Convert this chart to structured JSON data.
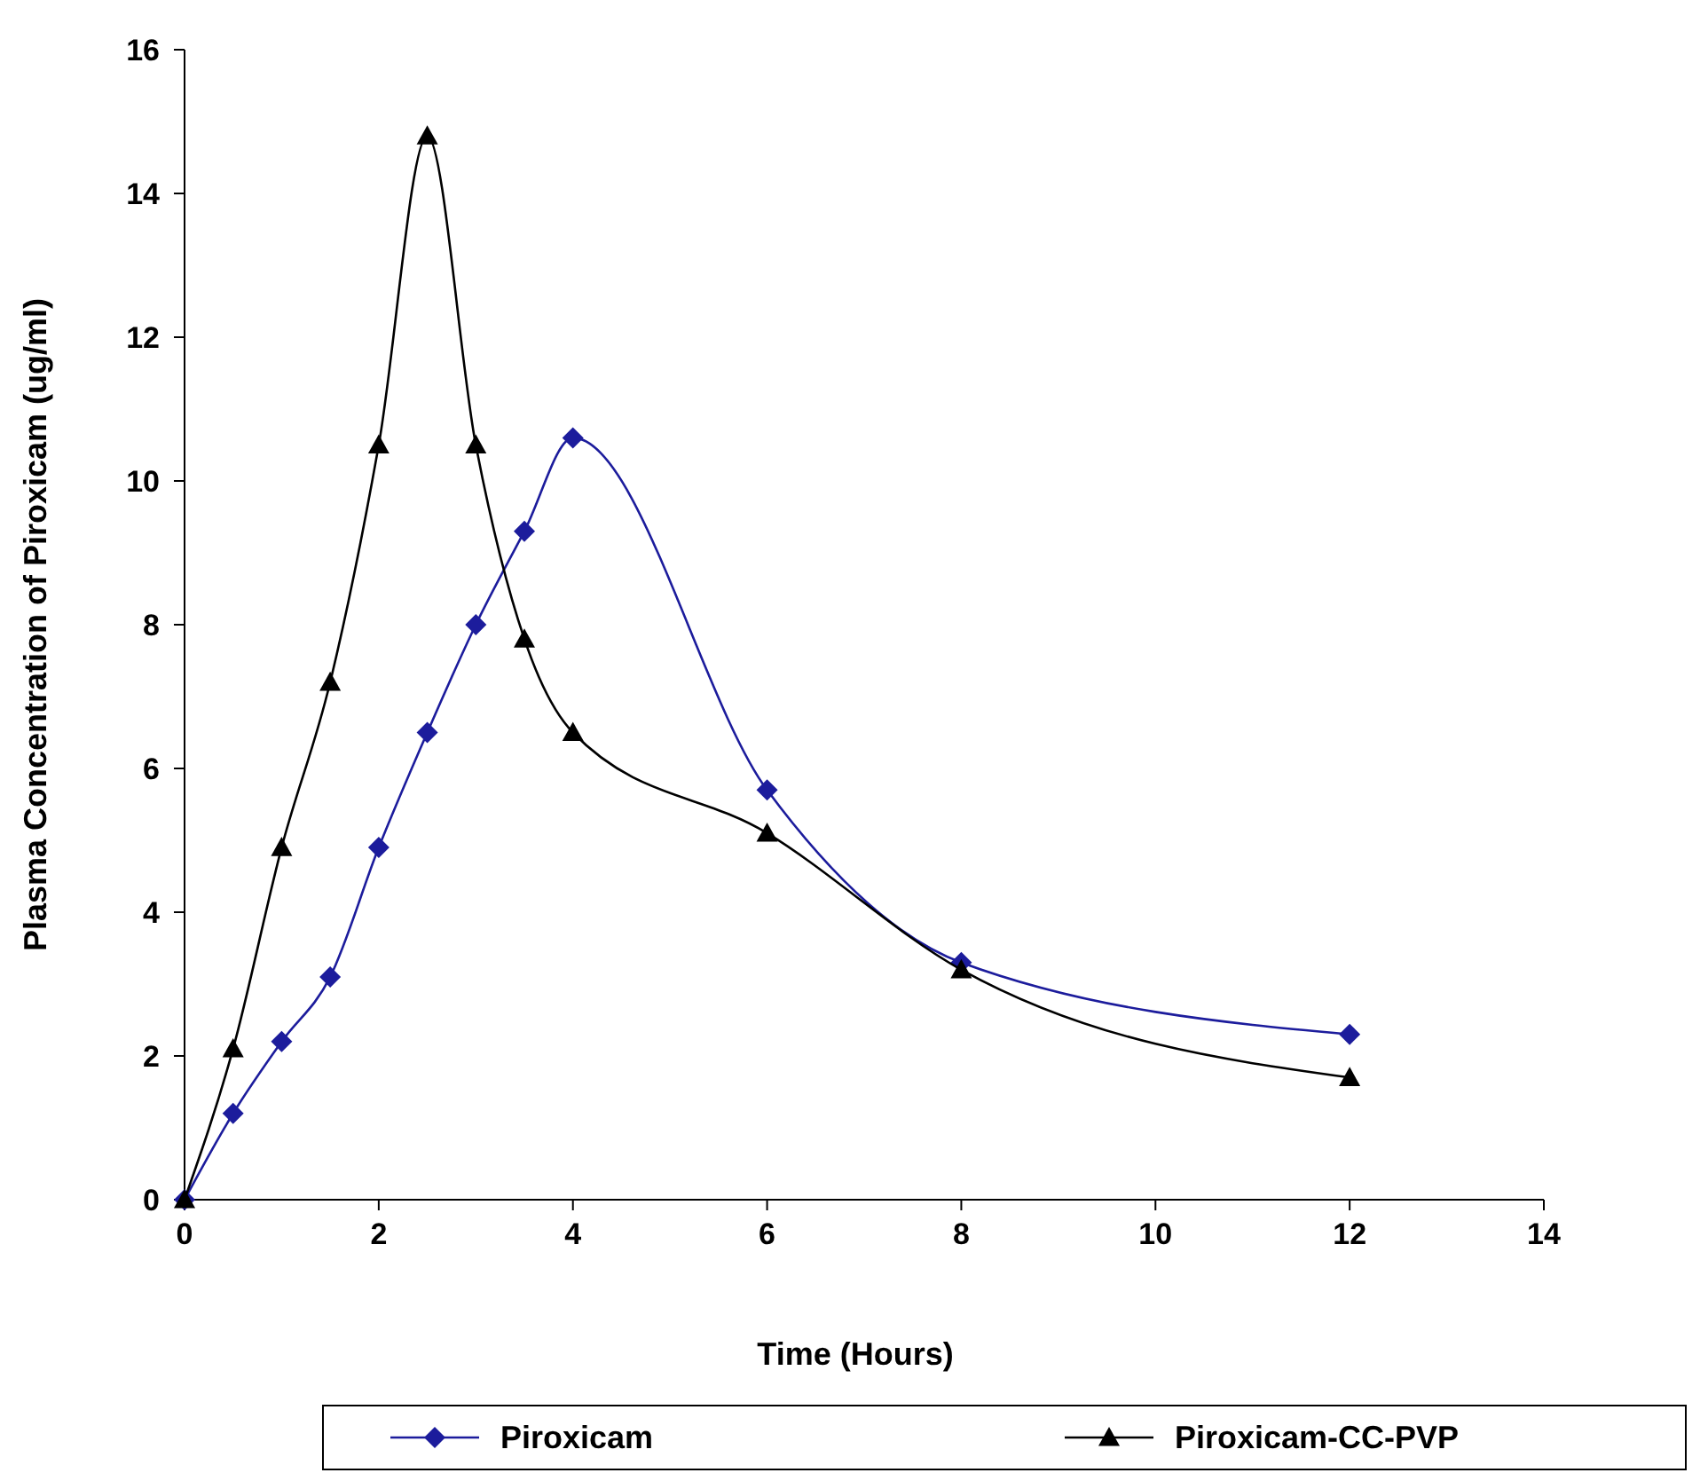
{
  "chart_data": {
    "type": "line",
    "xlabel": "Time (Hours)",
    "ylabel": "Plasma Concentration of Piroxicam  (ug/ml)",
    "xlim": [
      0,
      14
    ],
    "xticks": [
      0,
      2,
      4,
      6,
      8,
      10,
      12,
      14
    ],
    "ylim": [
      0,
      16
    ],
    "yticks": [
      0,
      2,
      4,
      6,
      8,
      10,
      12,
      14,
      16
    ],
    "grid": false,
    "legend": "bottom",
    "series": [
      {
        "name": "Piroxicam",
        "color": "#1c1c9c",
        "marker": "diamond",
        "x": [
          0,
          0.5,
          1,
          1.5,
          2,
          2.5,
          3,
          3.5,
          4,
          6,
          8,
          12
        ],
        "values": [
          0,
          1.2,
          2.2,
          3.1,
          4.9,
          6.5,
          8.0,
          9.3,
          10.6,
          5.7,
          3.3,
          2.3
        ]
      },
      {
        "name": "Piroxicam-CC-PVP",
        "color": "#000000",
        "marker": "triangle",
        "x": [
          0,
          0.5,
          1,
          1.5,
          2,
          2.5,
          3,
          3.5,
          4,
          6,
          8,
          12
        ],
        "values": [
          0,
          2.1,
          4.9,
          7.2,
          10.5,
          14.8,
          10.5,
          7.8,
          6.5,
          5.1,
          3.2,
          1.7
        ]
      }
    ]
  }
}
